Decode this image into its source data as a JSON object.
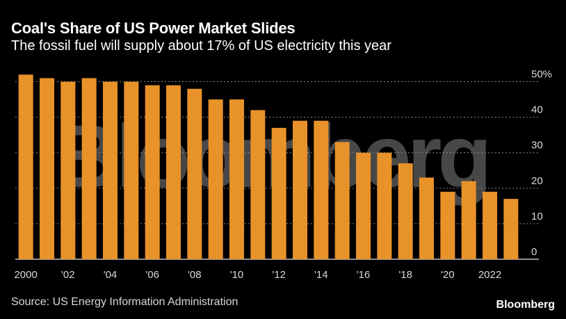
{
  "header": {
    "title": "Coal's Share of US Power Market Slides",
    "subtitle": "The fossil fuel will supply about 17% of US electricity this year"
  },
  "footer": {
    "source": "Source: US Energy Information Administration",
    "brand": "Bloomberg"
  },
  "watermark": "Bloomberg",
  "colors": {
    "bar": "#E8922A",
    "background": "#000000",
    "gridline": "#8c8c8c",
    "text": "#ffffff",
    "muted_text": "#d9d9d9"
  },
  "chart_data": {
    "type": "bar",
    "categories": [
      "2000",
      "2001",
      "2002",
      "2003",
      "2004",
      "2005",
      "2006",
      "2007",
      "2008",
      "2009",
      "2010",
      "2011",
      "2012",
      "2013",
      "2014",
      "2015",
      "2016",
      "2017",
      "2018",
      "2019",
      "2020",
      "2021",
      "2022",
      "2023"
    ],
    "x_tick_labels": [
      {
        "category": "2000",
        "label": "2000"
      },
      {
        "category": "2002",
        "label": "'02"
      },
      {
        "category": "2004",
        "label": "'04"
      },
      {
        "category": "2006",
        "label": "'06"
      },
      {
        "category": "2008",
        "label": "'08"
      },
      {
        "category": "2010",
        "label": "'10"
      },
      {
        "category": "2012",
        "label": "'12"
      },
      {
        "category": "2014",
        "label": "'14"
      },
      {
        "category": "2016",
        "label": "'16"
      },
      {
        "category": "2018",
        "label": "'18"
      },
      {
        "category": "2020",
        "label": "'20"
      },
      {
        "category": "2022",
        "label": "2022"
      }
    ],
    "values": [
      52,
      51,
      50,
      51,
      50,
      50,
      49,
      49,
      48,
      45,
      45,
      42,
      37,
      39,
      39,
      33,
      30,
      30,
      27,
      23,
      19,
      22,
      19,
      17
    ],
    "y_ticks": [
      0,
      10,
      20,
      30,
      40,
      50
    ],
    "y_tick_labels": [
      "0",
      "10",
      "20",
      "30",
      "40",
      "50%"
    ],
    "ylim": [
      0,
      55
    ],
    "title": "Coal's Share of US Power Market Slides",
    "xlabel": "",
    "ylabel": "",
    "grid": "horizontal dotted",
    "y_axis_side": "right",
    "legend": "none"
  }
}
